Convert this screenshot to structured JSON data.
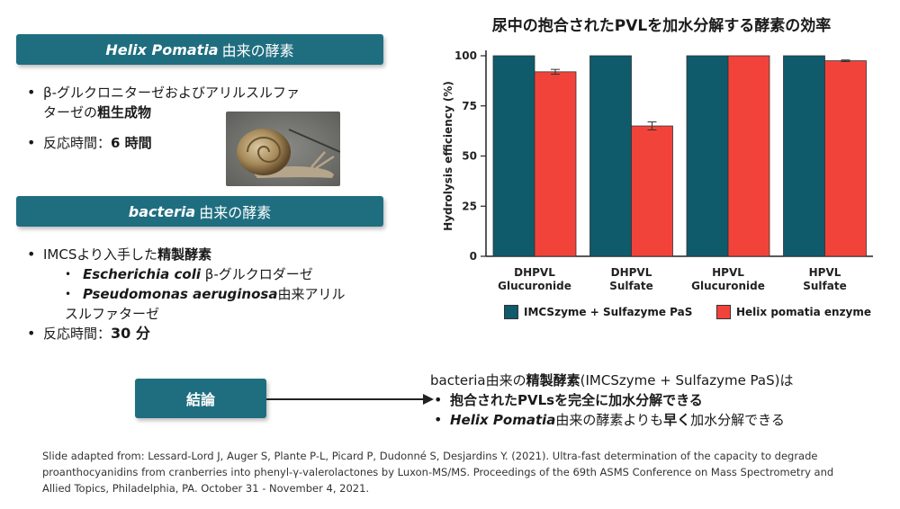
{
  "left": {
    "banner1": {
      "italic": "Helix Pomatia",
      "rest": "由来の酵素"
    },
    "list1": {
      "b1_line1": "β-グルクロニターゼおよびアリルスルファ",
      "b1_line2_pre": "ターゼの",
      "b1_line2_bold": "粗生成物",
      "b2_pre": "反応時間：",
      "b2_bold": "6 時間"
    },
    "banner2": {
      "italic": "bacteria",
      "rest": "由来の酵素"
    },
    "list2": {
      "b1_pre": "IMCSより入手した",
      "b1_bold": "精製酵素",
      "s1_italic": "Escherichia coli",
      "s1_rest": "β-グルクロダーゼ",
      "s2_italic": "Pseudomonas aeruginosa",
      "s2_rest": "由来アリル",
      "s2_line2": "スルファターゼ",
      "b2_pre": "反応時間：",
      "b2_bold": "30 分"
    }
  },
  "chart_data": {
    "type": "bar",
    "title": "尿中の抱合されたPVLを加水分解する酵素の効率",
    "ylabel": "Hydrolysis efficiency (%)",
    "ylim": [
      0,
      100
    ],
    "yticks": [
      0,
      25,
      50,
      75,
      100
    ],
    "categories": [
      [
        "DHPVL",
        "Glucuronide"
      ],
      [
        "DHPVL",
        "Sulfate"
      ],
      [
        "HPVL",
        "Glucuronide"
      ],
      [
        "HPVL",
        "Sulfate"
      ]
    ],
    "series": [
      {
        "name": "IMCSzyme + Sulfazyme PaS",
        "color": "#0f5a6b",
        "values": [
          100,
          100,
          100,
          100
        ],
        "errors": [
          0,
          0,
          0,
          0
        ]
      },
      {
        "name": "Helix pomatia enzyme",
        "color": "#f2433b",
        "values": [
          92,
          65,
          100,
          97.5
        ],
        "errors": [
          1.2,
          2,
          0,
          0.4
        ]
      }
    ],
    "legend_position": "bottom"
  },
  "conclusion": {
    "label": "結論",
    "line1_pre": "bacteria由来の",
    "line1_bold": "精製酵素",
    "line1_rest": "(IMCSzyme + Sulfazyme PaS)は",
    "line2_bold": "抱合されたPVLsを完全に加水分解できる",
    "line3_italic": "Helix Pomatia",
    "line3_mid": "由来の酵素よりも",
    "line3_bold": "早く",
    "line3_rest": "加水分解できる"
  },
  "citation": {
    "line1": "Slide adapted from: Lessard-Lord J, Auger S, Plante P-L, Picard P, Dudonné S, Desjardins Y. (2021). Ultra-fast determination of the capacity to degrade",
    "line2": "proanthocyanidins from cranberries into phenyl-γ-valerolactones by Luxon-MS/MS. Proceedings of the 69th ASMS Conference on Mass Spectrometry and",
    "line3": "Allied Topics, Philadelphia, PA. October 31 - November 4, 2021."
  }
}
